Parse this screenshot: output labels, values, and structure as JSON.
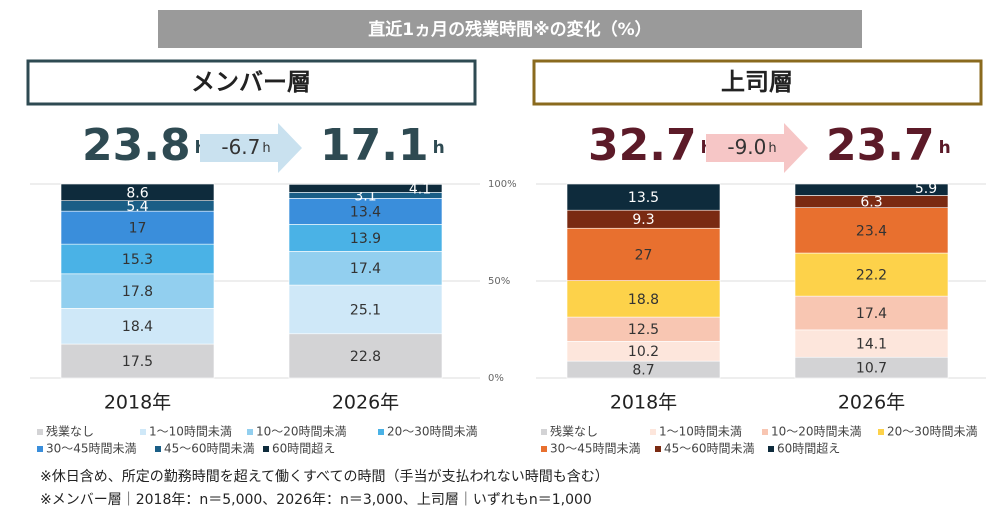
{
  "title": "直近1ヵ月の残業時間※の変化（%）",
  "chart_data": [
    {
      "type": "bar",
      "stacked": true,
      "title": "メンバー層",
      "frame_color": "#2e4a52",
      "accent_color": "#2e4a52",
      "arrow_color": "#c9e1ef",
      "summary": {
        "before": "23.8",
        "before_unit": "h",
        "change": "-6.7",
        "change_unit": "h",
        "after": "17.1",
        "after_unit": "h"
      },
      "categories": [
        "2018年",
        "2026年"
      ],
      "series": [
        {
          "name": "残業なし",
          "color": "#d3d3d5",
          "values": [
            17.5,
            22.8
          ]
        },
        {
          "name": "1〜10時間未満",
          "color": "#cfe8f8",
          "values": [
            18.4,
            25.1
          ]
        },
        {
          "name": "10〜20時間未満",
          "color": "#92cfef",
          "values": [
            17.8,
            17.4
          ]
        },
        {
          "name": "20〜30時間未満",
          "color": "#4ab2e6",
          "values": [
            15.3,
            13.9
          ]
        },
        {
          "name": "30〜45時間未満",
          "color": "#3a8edb",
          "values": [
            17.0,
            13.4
          ]
        },
        {
          "name": "45〜60時間未満",
          "color": "#1a5e86",
          "values": [
            5.4,
            3.1
          ]
        },
        {
          "name": "60時間超え",
          "color": "#0e2b3c",
          "values": [
            8.6,
            4.1
          ]
        }
      ],
      "ylim": [
        0,
        100
      ],
      "yticks": [
        {
          "value": 0,
          "label": "0%"
        },
        {
          "value": 50,
          "label": "50%"
        },
        {
          "value": 100,
          "label": "100%"
        }
      ],
      "grid": true
    },
    {
      "type": "bar",
      "stacked": true,
      "title": "上司層",
      "frame_color": "#8a6a1e",
      "accent_color": "#5c1a28",
      "arrow_color": "#f6c6c6",
      "summary": {
        "before": "32.7",
        "before_unit": "h",
        "change": "-9.0",
        "change_unit": "h",
        "after": "23.7",
        "after_unit": "h"
      },
      "categories": [
        "2018年",
        "2026年"
      ],
      "series": [
        {
          "name": "残業なし",
          "color": "#d3d3d5",
          "values": [
            8.7,
            10.7
          ]
        },
        {
          "name": "1〜10時間未満",
          "color": "#fde6dc",
          "values": [
            10.2,
            14.1
          ]
        },
        {
          "name": "10〜20時間未満",
          "color": "#f8c6b2",
          "values": [
            12.5,
            17.4
          ]
        },
        {
          "name": "20〜30時間未満",
          "color": "#fdd24a",
          "values": [
            18.8,
            22.2
          ]
        },
        {
          "name": "30〜45時間未満",
          "color": "#e8702f",
          "values": [
            27.0,
            23.4
          ]
        },
        {
          "name": "45〜60時間未満",
          "color": "#7a2a12",
          "values": [
            9.3,
            6.3
          ]
        },
        {
          "name": "60時間超え",
          "color": "#0e2b3c",
          "values": [
            13.5,
            5.9
          ]
        }
      ],
      "ylim": [
        0,
        100
      ],
      "grid": true
    }
  ],
  "notes": [
    "※休日含め、所定の勤務時間を超えて働くすべての時間（手当が支払われない時間も含む）",
    "※メンバー層｜2018年：n＝5,000、2026年：n＝3,000、上司層｜いずれもn＝1,000"
  ]
}
